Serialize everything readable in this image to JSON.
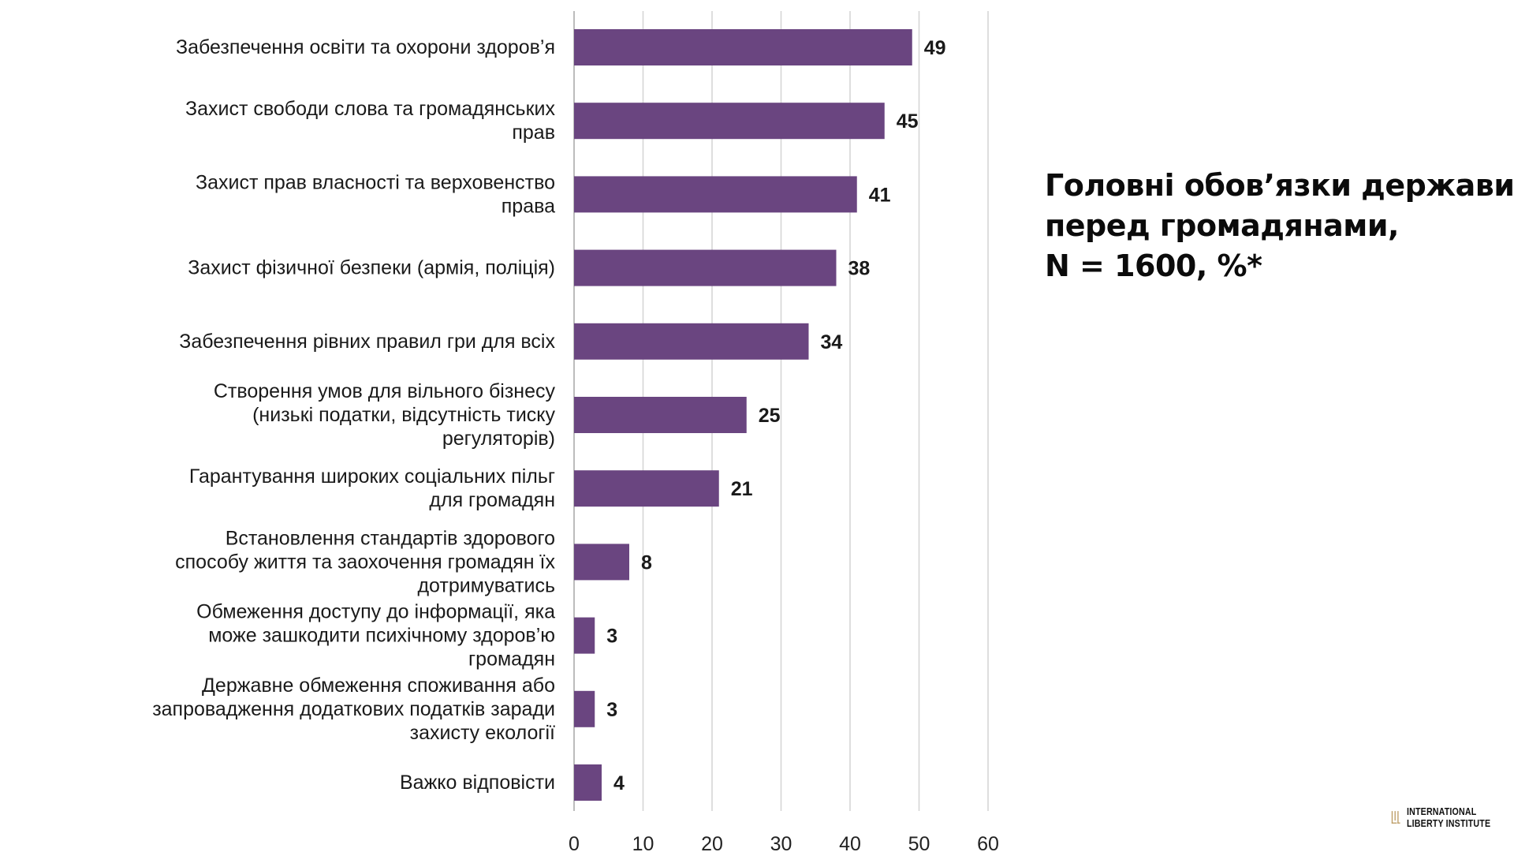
{
  "chart_data": {
    "type": "bar",
    "orientation": "horizontal",
    "title": [
      "Головні обов’язки держави",
      "перед громадянами,",
      "N = 1600, %*"
    ],
    "categories": [
      [
        "Забезпечення освіти та охорони здоров’я"
      ],
      [
        "Захист свободи слова та громадянських",
        "прав"
      ],
      [
        "Захист прав власності та верховенство",
        "права"
      ],
      [
        "Захист фізичної безпеки (армія, поліція)"
      ],
      [
        "Забезпечення рівних правил гри для всіх"
      ],
      [
        "Створення умов для вільного бізнесу",
        "(низькі податки, відсутність тиску",
        "регуляторів)"
      ],
      [
        "Гарантування широких соціальних пільг",
        "для громадян"
      ],
      [
        "Встановлення стандартів здорового",
        "способу життя та заохочення громадян їх",
        "дотримуватись"
      ],
      [
        "Обмеження доступу до інформації, яка",
        "може зашкодити психічному здоров’ю",
        "громадян"
      ],
      [
        "Державне обмеження споживання або",
        "запровадження додаткових податків заради",
        "захисту екології"
      ],
      [
        "Важко відповісти"
      ]
    ],
    "values": [
      49,
      45,
      41,
      38,
      34,
      25,
      21,
      8,
      3,
      3,
      4
    ],
    "xlim": [
      0,
      60
    ],
    "xticks": [
      0,
      10,
      20,
      30,
      40,
      50,
      60
    ],
    "grid": "vertical",
    "bar_color": "#6a4580",
    "data_labels": true
  },
  "logo": {
    "lines": [
      "INTERNATIONAL",
      "LIBERTY INSTITUTE"
    ],
    "accent": "#b8955a"
  }
}
